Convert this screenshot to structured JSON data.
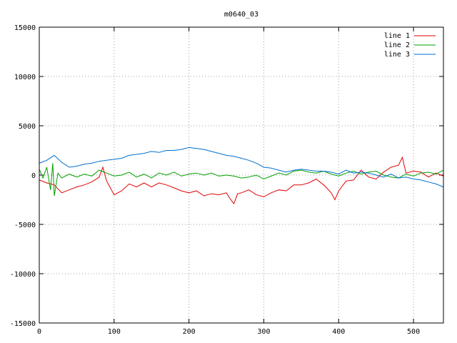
{
  "chart_data": {
    "type": "line",
    "title": "m0640_03",
    "xlabel": "",
    "ylabel": "",
    "xlim": [
      0,
      540
    ],
    "ylim": [
      -15000,
      15000
    ],
    "xticks": [
      0,
      100,
      200,
      300,
      400,
      500
    ],
    "yticks": [
      -15000,
      -10000,
      -5000,
      0,
      5000,
      10000,
      15000
    ],
    "grid": true,
    "legend_position": "top-right",
    "series": [
      {
        "name": "line 1",
        "color": "#e00000",
        "x": [
          0,
          10,
          20,
          30,
          40,
          50,
          60,
          70,
          80,
          85,
          90,
          100,
          110,
          120,
          130,
          140,
          150,
          160,
          170,
          180,
          190,
          200,
          210,
          220,
          230,
          240,
          250,
          255,
          260,
          265,
          270,
          280,
          290,
          300,
          310,
          320,
          330,
          340,
          350,
          360,
          370,
          380,
          390,
          395,
          400,
          410,
          420,
          430,
          440,
          450,
          460,
          470,
          480,
          485,
          490,
          500,
          510,
          520,
          530,
          540
        ],
        "y": [
          -500,
          -800,
          -1000,
          -1800,
          -1500,
          -1200,
          -1000,
          -700,
          -200,
          800,
          -600,
          -2000,
          -1600,
          -900,
          -1200,
          -800,
          -1200,
          -800,
          -1000,
          -1300,
          -1600,
          -1800,
          -1600,
          -2100,
          -1900,
          -2000,
          -1800,
          -2400,
          -2900,
          -1900,
          -1800,
          -1500,
          -2000,
          -2200,
          -1800,
          -1500,
          -1600,
          -1000,
          -1000,
          -800,
          -400,
          -1000,
          -1800,
          -2500,
          -1600,
          -600,
          -500,
          500,
          -200,
          -400,
          300,
          800,
          1000,
          1800,
          200,
          400,
          300,
          -200,
          200,
          -100
        ]
      },
      {
        "name": "line 2",
        "color": "#00a000",
        "x": [
          0,
          5,
          10,
          15,
          18,
          20,
          25,
          30,
          40,
          50,
          60,
          70,
          80,
          90,
          100,
          110,
          120,
          130,
          140,
          150,
          160,
          170,
          180,
          190,
          200,
          210,
          220,
          230,
          240,
          250,
          260,
          270,
          280,
          290,
          300,
          310,
          320,
          330,
          340,
          350,
          360,
          370,
          380,
          390,
          400,
          410,
          420,
          430,
          440,
          450,
          460,
          470,
          480,
          490,
          500,
          510,
          520,
          530,
          540
        ],
        "y": [
          600,
          -300,
          800,
          -1500,
          1200,
          -2100,
          200,
          -300,
          100,
          -200,
          100,
          -100,
          500,
          200,
          -100,
          0,
          300,
          -200,
          100,
          -300,
          200,
          0,
          300,
          -100,
          100,
          200,
          0,
          200,
          -100,
          0,
          -100,
          -300,
          -200,
          0,
          -400,
          -100,
          200,
          0,
          400,
          500,
          300,
          200,
          400,
          100,
          -100,
          200,
          400,
          100,
          300,
          400,
          0,
          -200,
          -300,
          100,
          -100,
          200,
          300,
          100,
          500
        ]
      },
      {
        "name": "line 3",
        "color": "#0070d0",
        "x": [
          0,
          10,
          20,
          30,
          40,
          50,
          60,
          70,
          80,
          90,
          100,
          110,
          120,
          130,
          140,
          150,
          160,
          170,
          180,
          190,
          200,
          210,
          220,
          230,
          240,
          250,
          260,
          270,
          280,
          290,
          300,
          310,
          320,
          330,
          340,
          350,
          360,
          370,
          380,
          390,
          400,
          410,
          420,
          430,
          440,
          450,
          460,
          470,
          480,
          490,
          500,
          510,
          520,
          530,
          540
        ],
        "y": [
          1200,
          1500,
          2000,
          1300,
          800,
          900,
          1100,
          1200,
          1400,
          1500,
          1600,
          1700,
          2000,
          2100,
          2200,
          2400,
          2300,
          2500,
          2500,
          2600,
          2800,
          2700,
          2600,
          2400,
          2200,
          2000,
          1900,
          1700,
          1500,
          1200,
          800,
          700,
          500,
          300,
          500,
          600,
          500,
          400,
          400,
          300,
          100,
          500,
          200,
          300,
          200,
          0,
          -200,
          100,
          -300,
          -200,
          -400,
          -500,
          -700,
          -900,
          -1200
        ]
      }
    ]
  }
}
